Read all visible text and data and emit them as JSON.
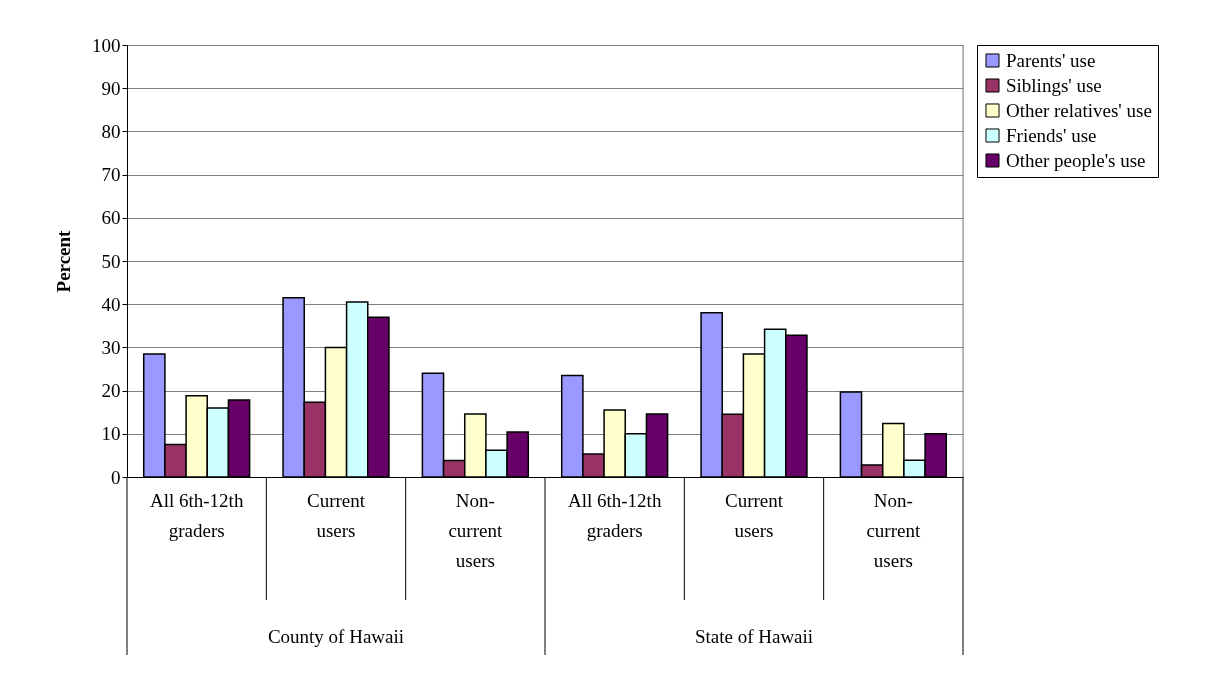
{
  "chart_data": {
    "type": "bar",
    "ylabel": "Percent",
    "categories": [
      "All 6th-12th\ngraders",
      "Current\nusers",
      "Non-\ncurrent\nusers",
      "All 6th-12th\ngraders",
      "Current\nusers",
      "Non-\ncurrent\nusers"
    ],
    "annotations": [
      "County of Hawaii",
      "State of Hawaii"
    ],
    "series": [
      {
        "name": "Parents' use",
        "color": "#9999ff",
        "values": [
          28.5,
          41.5,
          24,
          23.5,
          38,
          19.7
        ]
      },
      {
        "name": "Siblings' use",
        "color": "#993366",
        "values": [
          7.5,
          17.3,
          3.8,
          5.3,
          14.5,
          2.8
        ]
      },
      {
        "name": "Other relatives' use",
        "color": "#ffffcc",
        "values": [
          18.8,
          30,
          14.6,
          15.5,
          28.5,
          12.4
        ]
      },
      {
        "name": "Friends' use",
        "color": "#ccffff",
        "values": [
          16,
          40.5,
          6.2,
          10,
          34.2,
          3.9
        ]
      },
      {
        "name": "Other people's use",
        "color": "#660066",
        "values": [
          17.8,
          37,
          10.4,
          14.6,
          32.8,
          10
        ]
      }
    ],
    "ylim": [
      0,
      100
    ],
    "yticks": [
      0,
      10,
      20,
      30,
      40,
      50,
      60,
      70,
      80,
      90,
      100
    ],
    "grid": "y",
    "legend": "right"
  }
}
